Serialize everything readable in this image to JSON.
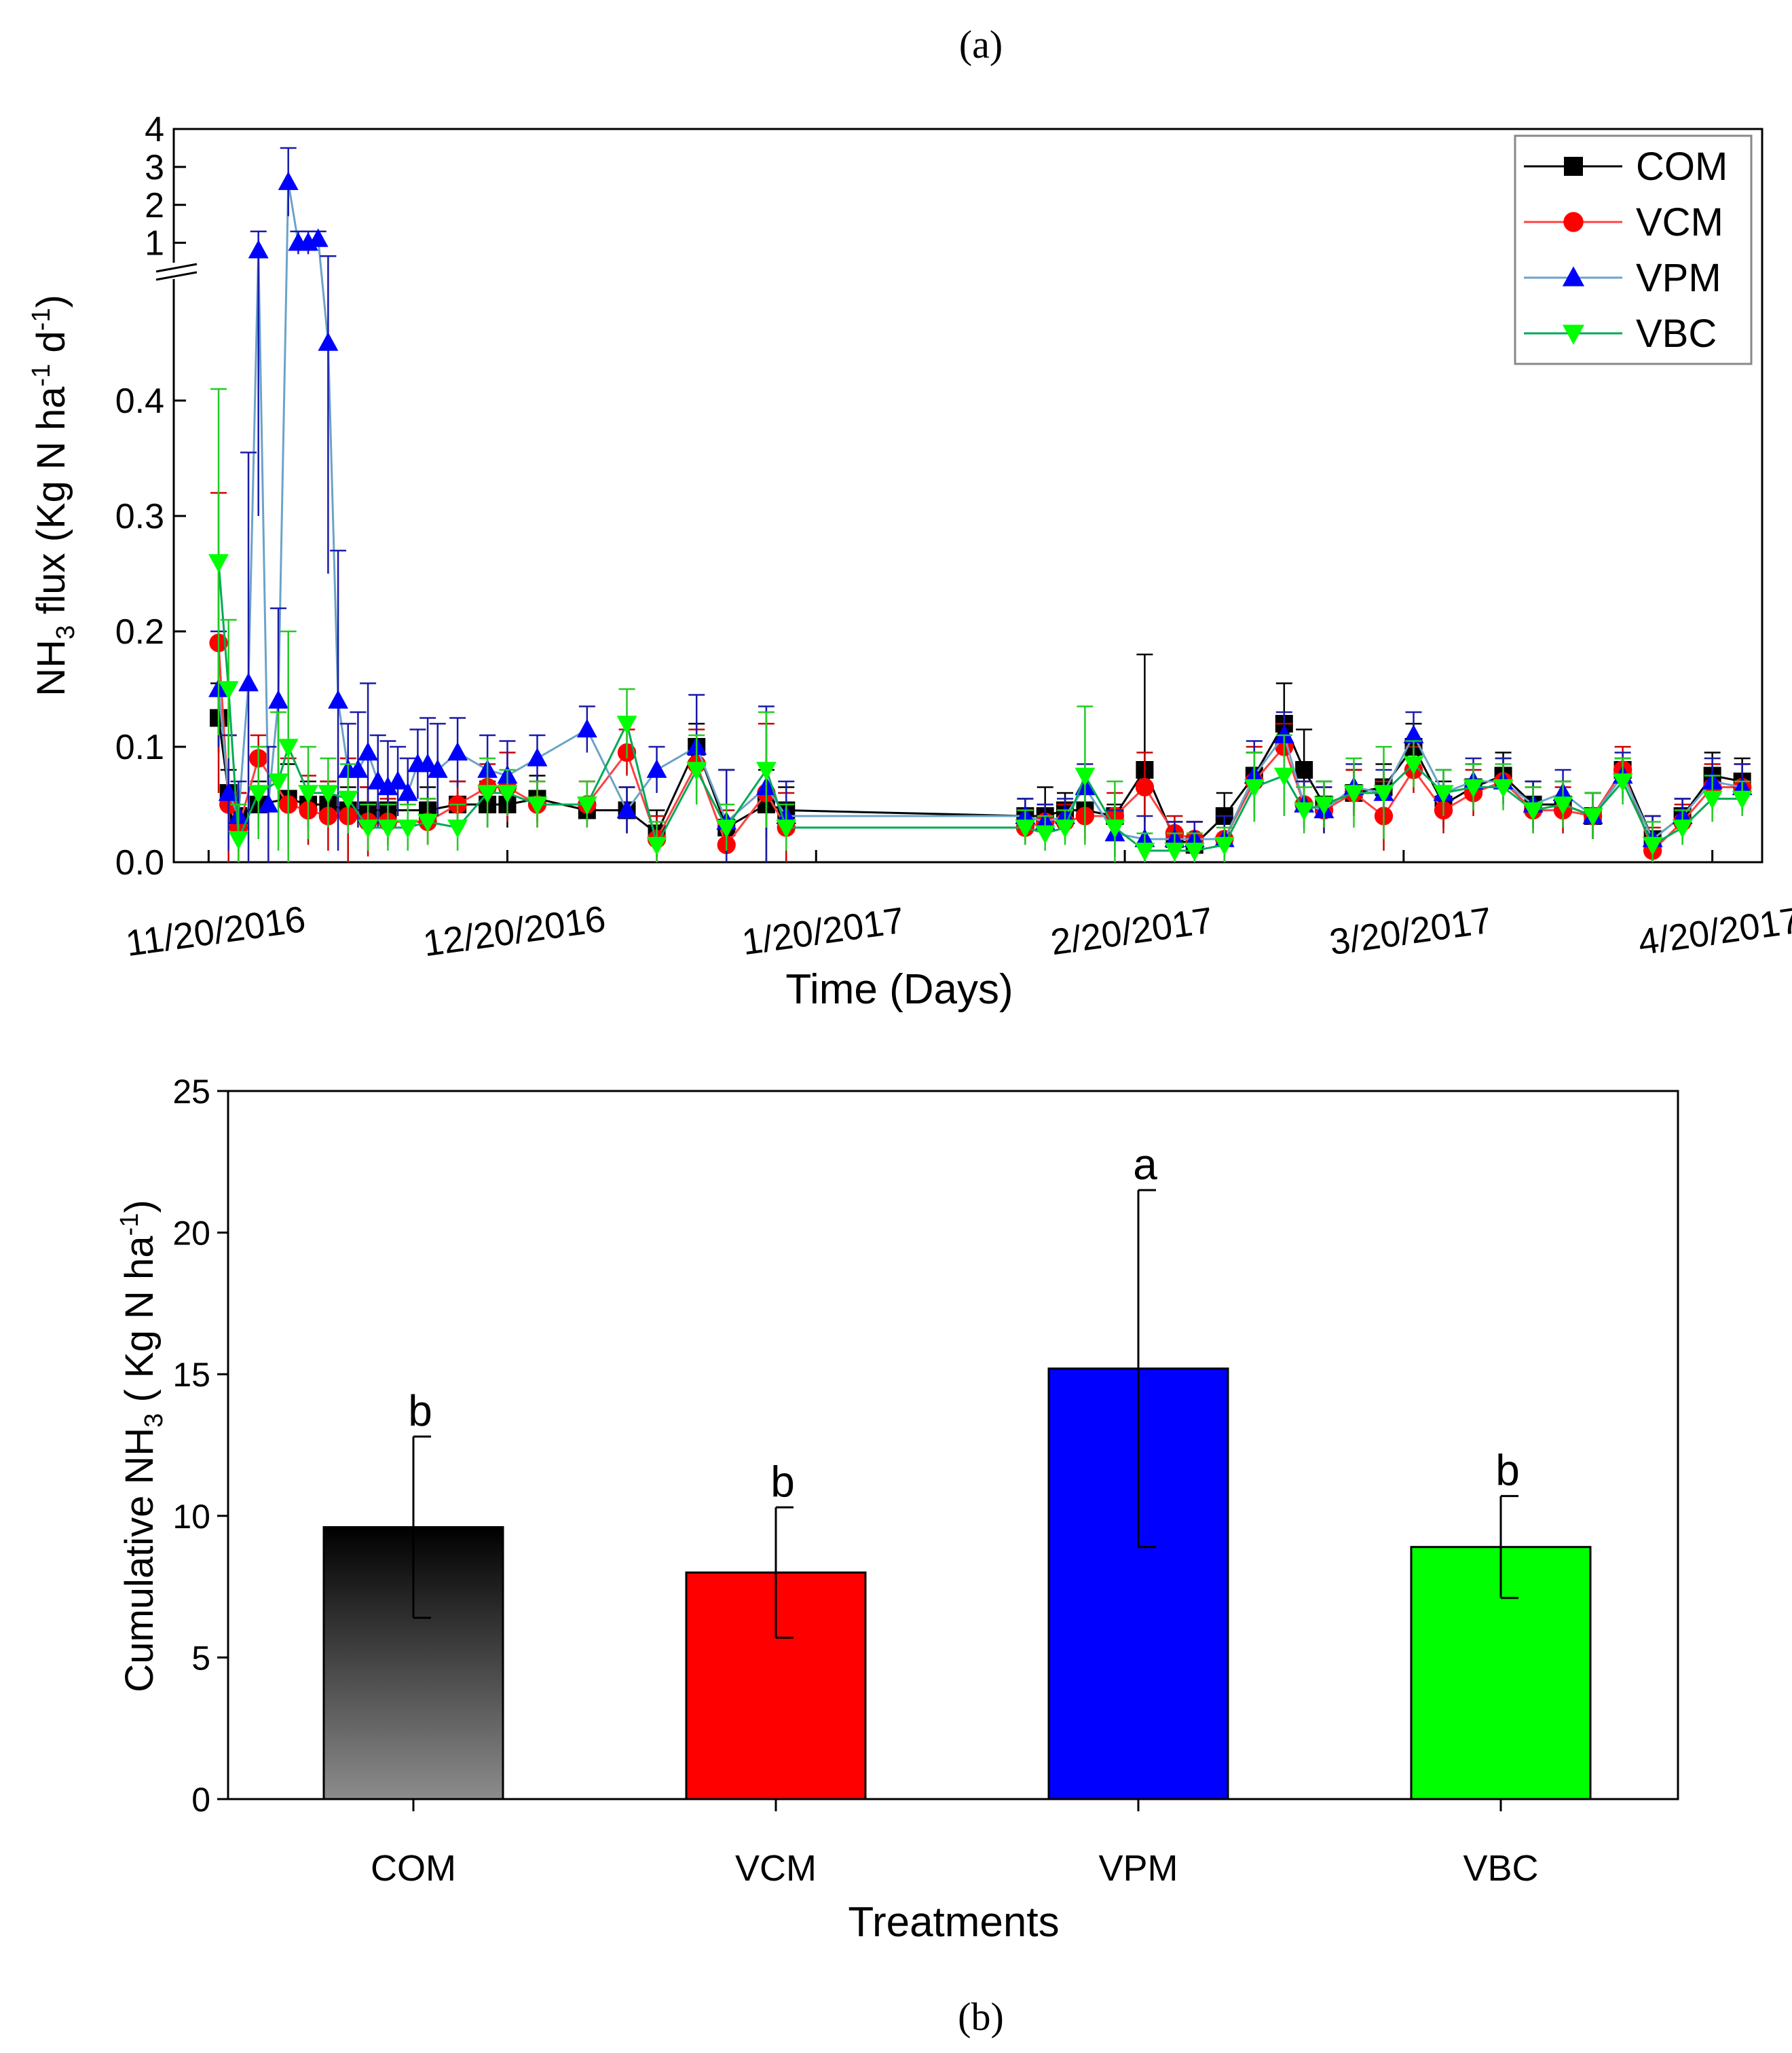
{
  "panel_labels": {
    "a": "(a)",
    "b": "(b)"
  },
  "chart_data": [
    {
      "type": "line",
      "xlabel": "Time (Days)",
      "ylabel_parts": {
        "pre": "NH",
        "sub3": "3",
        "mid": " flux (Kg N ha",
        "supA": "-1",
        "mid2": " d",
        "supB": "-1",
        "post": ")"
      },
      "x_ticks": [
        "11/20/2016",
        "12/20/2016",
        "1/20/2017",
        "2/20/2017",
        "3/20/2017",
        "4/20/2017"
      ],
      "x_range_days": [
        -3.5,
        156
      ],
      "y_lower_ticks": [
        "0.0",
        "0.1",
        "0.2",
        "0.3",
        "0.4"
      ],
      "y_lower_range": [
        0,
        0.5
      ],
      "y_upper_ticks": [
        "1",
        "2",
        "3",
        "4"
      ],
      "y_upper_range": [
        0.6,
        4
      ],
      "y_break": 0.5,
      "grid": false,
      "legend_position": "top-right",
      "series": [
        {
          "name": "COM",
          "color": "#000000",
          "marker": "square",
          "x": [
            1,
            2,
            3,
            5,
            8,
            10,
            12,
            14,
            16,
            18,
            22,
            25,
            28,
            30,
            33,
            38,
            42,
            45,
            49,
            52,
            56,
            58,
            82,
            84,
            86,
            88,
            91,
            94,
            97,
            99,
            102,
            105,
            108,
            110,
            112,
            115,
            118,
            121,
            124,
            127,
            130,
            133,
            136,
            139,
            142,
            145,
            148,
            151,
            154
          ],
          "y": [
            0.125,
            0.06,
            0.04,
            0.05,
            0.055,
            0.05,
            0.05,
            0.045,
            0.045,
            0.045,
            0.045,
            0.05,
            0.05,
            0.05,
            0.055,
            0.045,
            0.045,
            0.025,
            0.1,
            0.03,
            0.05,
            0.045,
            0.04,
            0.04,
            0.045,
            0.045,
            0.04,
            0.08,
            0.02,
            0.015,
            0.04,
            0.075,
            0.12,
            0.08,
            0.05,
            0.06,
            0.065,
            0.1,
            0.05,
            0.065,
            0.075,
            0.05,
            0.05,
            0.04,
            0.08,
            0.02,
            0.04,
            0.075,
            0.07
          ],
          "err": [
            0.03,
            0.02,
            0.02,
            0.02,
            0.03,
            0.02,
            0.02,
            0.02,
            0.02,
            0.02,
            0.02,
            0.02,
            0.02,
            0.02,
            0.02,
            0.01,
            0.02,
            0.02,
            0.02,
            0.05,
            0.03,
            0.02,
            0.015,
            0.025,
            0.015,
            0.015,
            0.01,
            0.1,
            0.015,
            0.02,
            0.02,
            0.02,
            0.035,
            0.035,
            0.02,
            0.02,
            0.02,
            0.02,
            0.02,
            0.02,
            0.02,
            0.02,
            0.02,
            0.02,
            0.01,
            0.02,
            0.015,
            0.02,
            0.02
          ]
        },
        {
          "name": "VCM",
          "color": "#ff0000",
          "marker": "circle",
          "x": [
            1,
            2,
            3,
            5,
            8,
            10,
            12,
            14,
            16,
            18,
            22,
            25,
            28,
            30,
            33,
            38,
            42,
            45,
            49,
            52,
            56,
            58,
            82,
            84,
            86,
            88,
            91,
            94,
            97,
            99,
            102,
            105,
            108,
            110,
            112,
            115,
            118,
            121,
            124,
            127,
            130,
            133,
            136,
            139,
            142,
            145,
            148,
            151,
            154
          ],
          "y": [
            0.19,
            0.05,
            0.03,
            0.09,
            0.05,
            0.045,
            0.04,
            0.04,
            0.035,
            0.035,
            0.035,
            0.05,
            0.065,
            0.065,
            0.05,
            0.05,
            0.095,
            0.02,
            0.085,
            0.015,
            0.06,
            0.03,
            0.03,
            0.035,
            0.035,
            0.04,
            0.04,
            0.065,
            0.025,
            0.02,
            0.02,
            0.07,
            0.1,
            0.05,
            0.045,
            0.06,
            0.04,
            0.08,
            0.045,
            0.06,
            0.07,
            0.045,
            0.045,
            0.04,
            0.08,
            0.01,
            0.035,
            0.065,
            0.065
          ],
          "err": [
            0.13,
            0.06,
            0.03,
            0.02,
            0.04,
            0.03,
            0.03,
            0.05,
            0.03,
            0.02,
            0.02,
            0.02,
            0.02,
            0.03,
            0.02,
            0.02,
            0.02,
            0.02,
            0.03,
            0.03,
            0.06,
            0.03,
            0.015,
            0.015,
            0.015,
            0.02,
            0.02,
            0.03,
            0.015,
            0.015,
            0.02,
            0.03,
            0.02,
            0.02,
            0.02,
            0.02,
            0.03,
            0.02,
            0.02,
            0.02,
            0.02,
            0.02,
            0.02,
            0.02,
            0.02,
            0.02,
            0.015,
            0.02,
            0.02
          ]
        },
        {
          "name": "VPM",
          "color": "#0000ff",
          "marker": "triangle-up",
          "x": [
            1,
            2,
            3,
            4,
            5,
            6,
            7,
            8,
            9,
            10,
            11,
            12,
            13,
            14,
            15,
            16,
            17,
            18,
            19,
            20,
            21,
            22,
            23,
            25,
            28,
            30,
            33,
            38,
            42,
            45,
            49,
            52,
            56,
            58,
            82,
            84,
            86,
            88,
            91,
            94,
            97,
            99,
            102,
            105,
            108,
            110,
            112,
            115,
            118,
            121,
            124,
            127,
            130,
            133,
            136,
            139,
            142,
            145,
            148,
            151,
            154
          ],
          "y": [
            0.15,
            0.06,
            0.04,
            0.155,
            0.8,
            0.05,
            0.14,
            2.6,
            1.0,
            1.0,
            1.1,
            0.45,
            0.14,
            0.08,
            0.08,
            0.095,
            0.07,
            0.065,
            0.07,
            0.06,
            0.085,
            0.085,
            0.08,
            0.095,
            0.08,
            0.075,
            0.09,
            0.115,
            0.045,
            0.08,
            0.1,
            0.035,
            0.065,
            0.04,
            0.04,
            0.035,
            0.04,
            0.065,
            0.025,
            0.02,
            0.02,
            0.02,
            0.02,
            0.075,
            0.11,
            0.05,
            0.045,
            0.065,
            0.06,
            0.11,
            0.06,
            0.07,
            0.07,
            0.05,
            0.06,
            0.04,
            0.075,
            0.02,
            0.04,
            0.07,
            0.065
          ],
          "err": [
            0.05,
            0.05,
            0.03,
            0.2,
            0.5,
            0.05,
            0.08,
            0.9,
            0.3,
            0.3,
            0.2,
            0.2,
            0.13,
            0.04,
            0.05,
            0.06,
            0.04,
            0.04,
            0.03,
            0.03,
            0.03,
            0.04,
            0.04,
            0.03,
            0.03,
            0.03,
            0.02,
            0.02,
            0.02,
            0.02,
            0.045,
            0.045,
            0.07,
            0.03,
            0.015,
            0.015,
            0.015,
            0.02,
            0.02,
            0.02,
            0.015,
            0.015,
            0.02,
            0.03,
            0.02,
            0.02,
            0.02,
            0.02,
            0.02,
            0.02,
            0.02,
            0.02,
            0.02,
            0.02,
            0.02,
            0.02,
            0.02,
            0.02,
            0.015,
            0.02,
            0.02
          ]
        },
        {
          "name": "VBC",
          "color": "#00ff00",
          "marker": "triangle-down",
          "x": [
            1,
            2,
            3,
            5,
            7,
            8,
            10,
            12,
            14,
            16,
            18,
            20,
            22,
            25,
            28,
            30,
            33,
            38,
            42,
            45,
            49,
            52,
            56,
            58,
            82,
            84,
            86,
            88,
            91,
            94,
            97,
            99,
            102,
            105,
            108,
            110,
            112,
            115,
            118,
            121,
            124,
            127,
            130,
            133,
            136,
            139,
            142,
            145,
            148,
            151,
            154
          ],
          "y": [
            0.26,
            0.15,
            0.02,
            0.06,
            0.07,
            0.1,
            0.06,
            0.06,
            0.055,
            0.03,
            0.03,
            0.03,
            0.035,
            0.03,
            0.06,
            0.06,
            0.05,
            0.05,
            0.12,
            0.015,
            0.08,
            0.03,
            0.08,
            0.03,
            0.03,
            0.025,
            0.03,
            0.075,
            0.03,
            0.01,
            0.01,
            0.01,
            0.015,
            0.065,
            0.075,
            0.045,
            0.05,
            0.06,
            0.06,
            0.085,
            0.06,
            0.065,
            0.065,
            0.045,
            0.05,
            0.04,
            0.07,
            0.015,
            0.03,
            0.055,
            0.055
          ],
          "err": [
            0.15,
            0.06,
            0.03,
            0.04,
            0.06,
            0.1,
            0.04,
            0.03,
            0.03,
            0.02,
            0.02,
            0.02,
            0.02,
            0.02,
            0.03,
            0.02,
            0.02,
            0.02,
            0.03,
            0.02,
            0.03,
            0.02,
            0.05,
            0.02,
            0.015,
            0.015,
            0.015,
            0.06,
            0.04,
            0.015,
            0.015,
            0.015,
            0.015,
            0.03,
            0.035,
            0.02,
            0.02,
            0.03,
            0.04,
            0.02,
            0.02,
            0.02,
            0.02,
            0.02,
            0.02,
            0.02,
            0.02,
            0.02,
            0.015,
            0.02,
            0.015
          ]
        }
      ]
    },
    {
      "type": "bar",
      "xlabel": "Treatments",
      "ylabel_parts": {
        "pre": "Cumulative NH",
        "sub3": "3",
        "mid": " ( Kg N ha",
        "sup": "-1",
        "post": ")"
      },
      "categories": [
        "COM",
        "VCM",
        "VPM",
        "VBC"
      ],
      "values": [
        9.6,
        8.0,
        15.2,
        8.9
      ],
      "errors": [
        3.2,
        2.3,
        6.3,
        1.8
      ],
      "letters": [
        "b",
        "b",
        "a",
        "b"
      ],
      "colors": [
        "gradient-black-gray",
        "#ff0000",
        "#0000ff",
        "#00ff00"
      ],
      "y_ticks": [
        "0",
        "5",
        "10",
        "15",
        "20",
        "25"
      ],
      "ylim": [
        0,
        25
      ],
      "grid": false
    }
  ]
}
